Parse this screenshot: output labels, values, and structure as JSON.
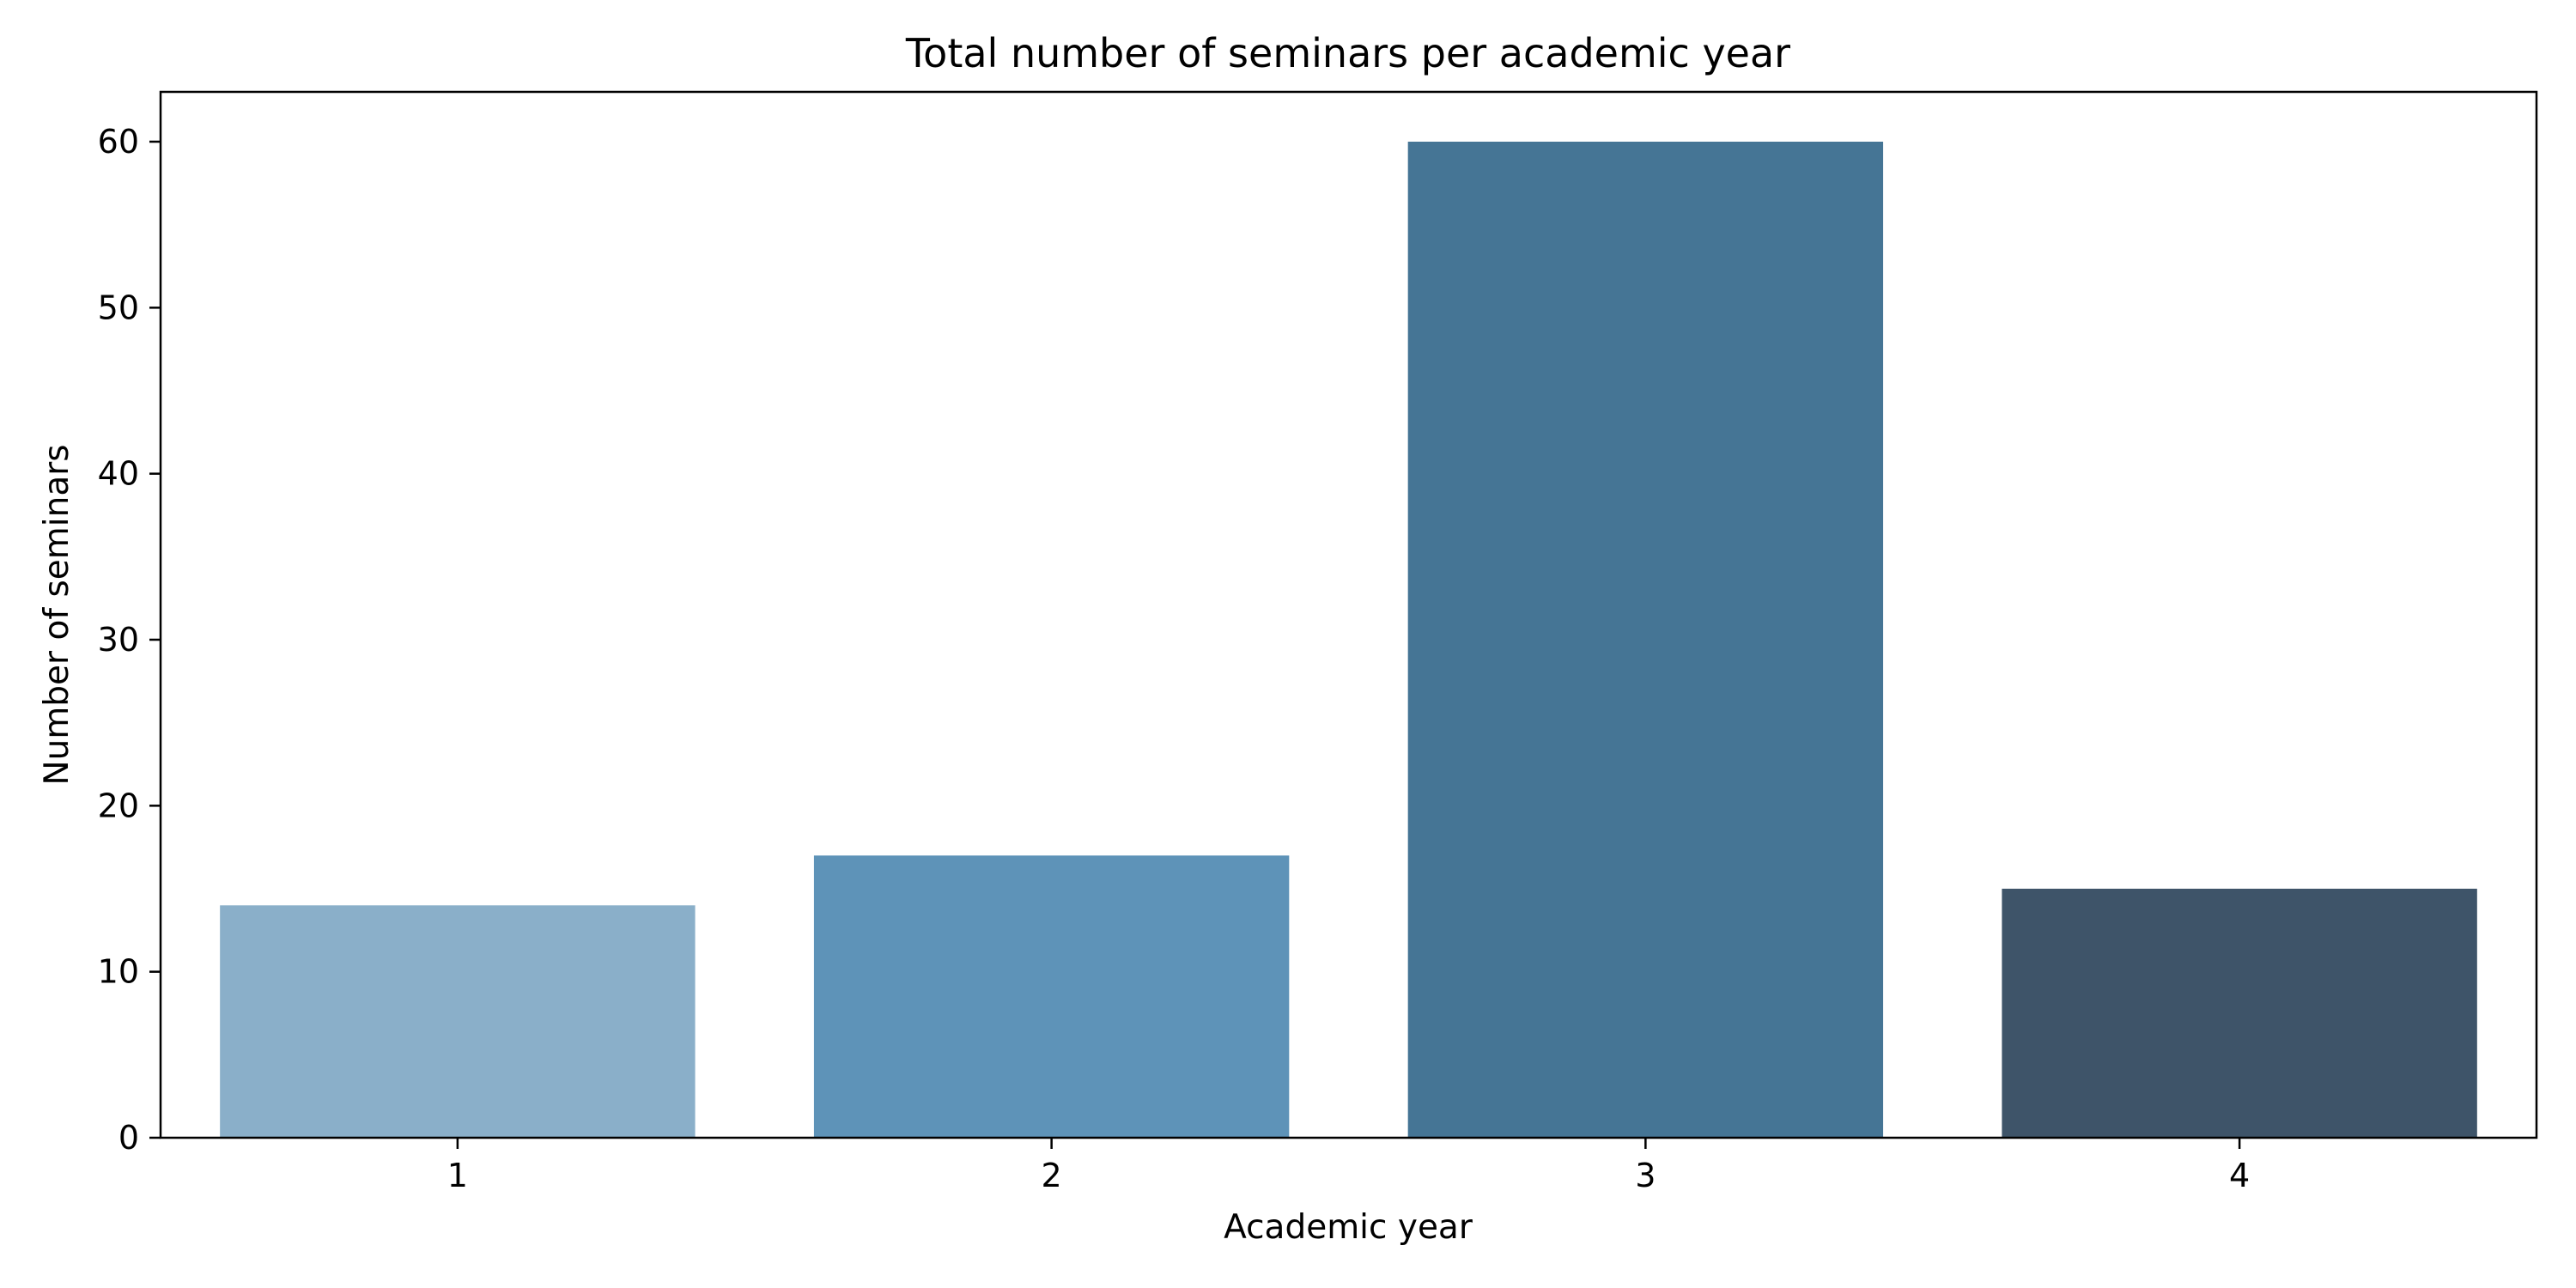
{
  "chart_data": {
    "type": "bar",
    "title": "Total number of seminars per academic year",
    "xlabel": "Academic year",
    "ylabel": "Number of seminars",
    "categories": [
      "1",
      "2",
      "3",
      "4"
    ],
    "values": [
      14,
      17,
      60,
      15
    ],
    "colors": [
      "#8aafc9",
      "#5e93b8",
      "#457595",
      "#3e5469"
    ],
    "ylim": [
      0,
      63
    ],
    "yticks": [
      0,
      10,
      20,
      30,
      40,
      50,
      60
    ],
    "ytick_labels": [
      "0",
      "10",
      "20",
      "30",
      "40",
      "50",
      "60"
    ],
    "grid": false,
    "legend": "none"
  }
}
